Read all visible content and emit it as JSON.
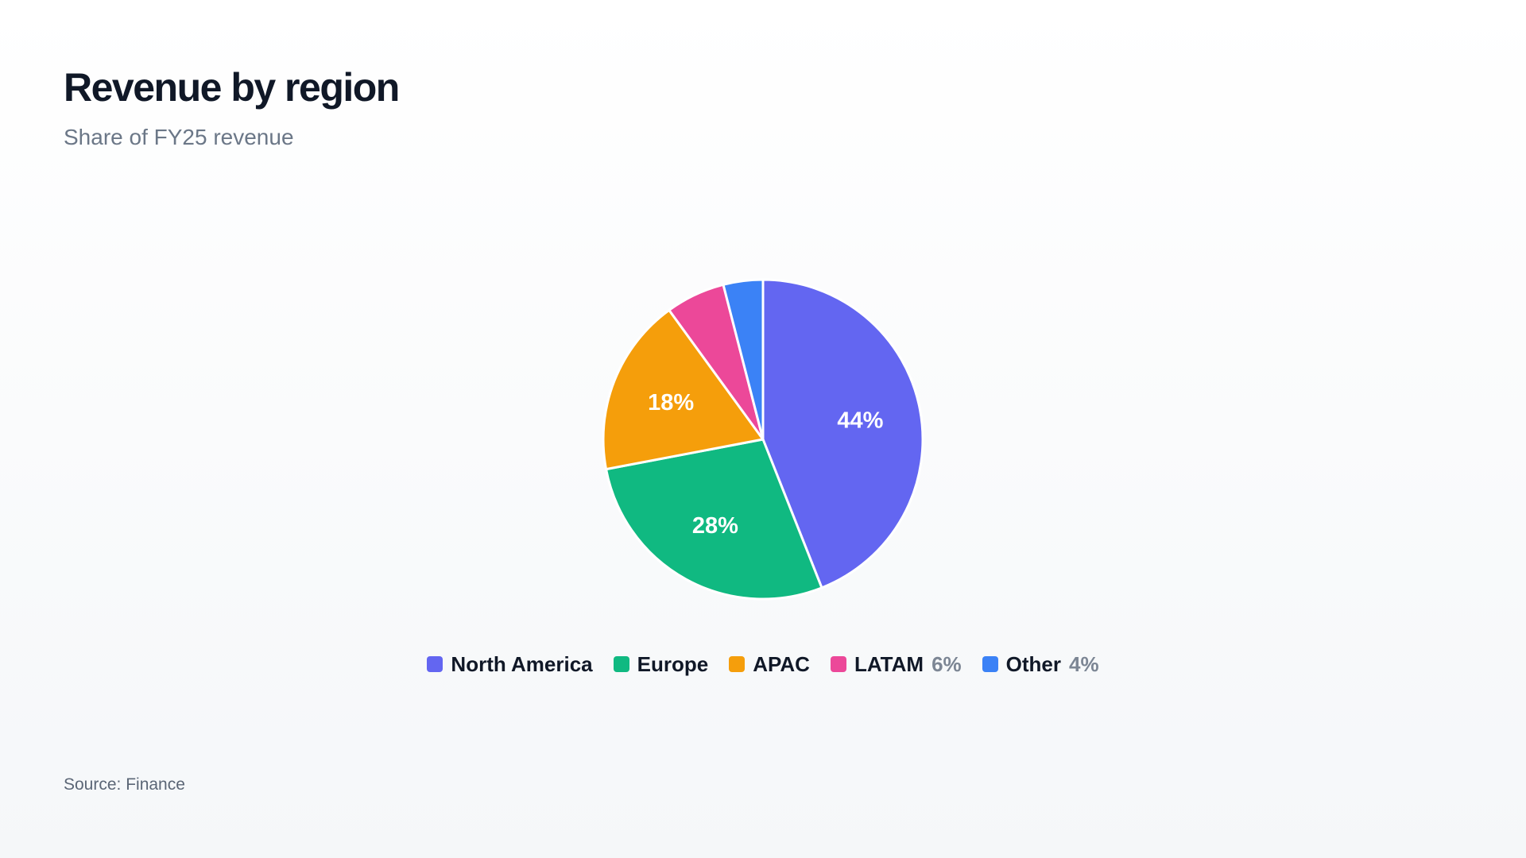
{
  "chart_data": {
    "type": "pie",
    "title": "Revenue by region",
    "subtitle": "Share of FY25 revenue",
    "source": "Source: Finance",
    "legend_position": "bottom",
    "slices": [
      {
        "name": "North America",
        "value": 44,
        "label": "44%",
        "legend_value": "",
        "color": "#6366f1"
      },
      {
        "name": "Europe",
        "value": 28,
        "label": "28%",
        "legend_value": "",
        "color": "#10b981"
      },
      {
        "name": "APAC",
        "value": 18,
        "label": "18%",
        "legend_value": "",
        "color": "#f59e0b"
      },
      {
        "name": "LATAM",
        "value": 6,
        "label": "",
        "legend_value": "6%",
        "color": "#ec4899"
      },
      {
        "name": "Other",
        "value": 4,
        "label": "",
        "legend_value": "4%",
        "color": "#3b82f6"
      }
    ]
  }
}
